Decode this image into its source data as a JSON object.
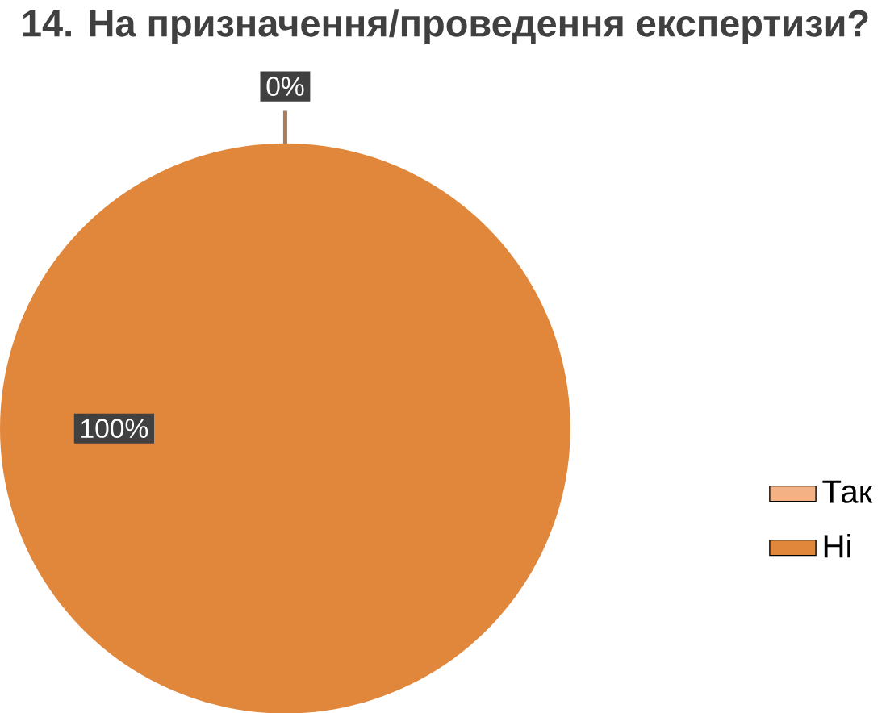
{
  "chart_data": {
    "type": "pie",
    "title": "14. На призначення/проведення експертизи?",
    "categories": [
      "Так",
      "Ні"
    ],
    "values": [
      0,
      100
    ],
    "colors": [
      "#f4b183",
      "#e0873c"
    ],
    "value_labels": [
      "0%",
      "100%"
    ],
    "legend": "right"
  }
}
